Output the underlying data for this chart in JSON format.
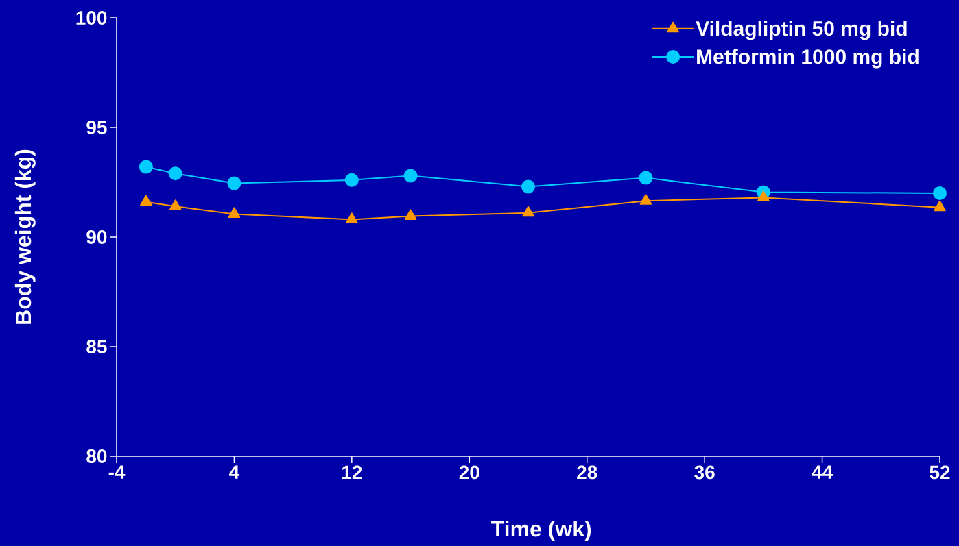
{
  "chart_data": {
    "type": "line",
    "xlabel": "Time (wk)",
    "ylabel": "Body weight (kg)",
    "x": [
      -2,
      0,
      4,
      12,
      16,
      24,
      32,
      40,
      52
    ],
    "series": [
      {
        "name": "Vildagliptin 50 mg bid",
        "color": "#ff9900",
        "marker": "triangle",
        "values": [
          91.6,
          91.4,
          91.05,
          90.8,
          90.95,
          91.1,
          91.65,
          91.8,
          91.35
        ]
      },
      {
        "name": "Metformin 1000 mg bid",
        "color": "#00ccff",
        "marker": "circle",
        "values": [
          93.2,
          92.9,
          92.45,
          92.6,
          92.8,
          92.3,
          92.7,
          92.05,
          92.0
        ]
      }
    ],
    "xlim": [
      -4,
      52
    ],
    "xticks": [
      -4,
      4,
      12,
      20,
      28,
      36,
      44,
      52
    ],
    "ylim": [
      80,
      100
    ],
    "yticks": [
      80,
      85,
      90,
      95,
      100
    ],
    "grid": false,
    "legend": "top right",
    "line_style": "solid"
  }
}
